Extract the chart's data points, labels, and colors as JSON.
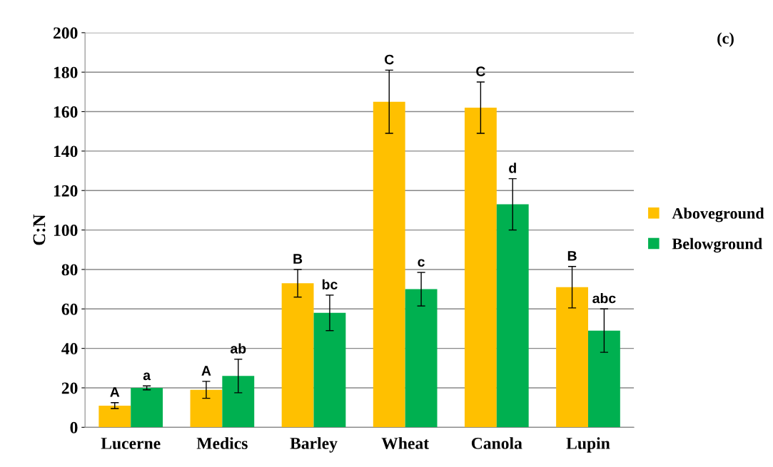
{
  "chart_data": {
    "type": "bar",
    "ylabel": "C:N",
    "categories": [
      "Lucerne",
      "Medics",
      "Barley",
      "Wheat",
      "Canola",
      "Lupin"
    ],
    "series": [
      {
        "name": "Aboveground",
        "color": "#ffc000",
        "values": [
          11,
          19,
          73,
          165,
          162,
          71
        ],
        "errors": [
          1.5,
          4.3,
          7,
          16,
          13,
          10.5
        ],
        "value_labels": [
          "A",
          "A",
          "B",
          "C",
          "C",
          "B"
        ]
      },
      {
        "name": "Belowground",
        "color": "#00b050",
        "values": [
          20,
          26,
          58,
          70,
          113,
          49
        ],
        "errors": [
          1,
          8.5,
          9,
          8.5,
          13,
          11
        ],
        "value_labels": [
          "a",
          "ab",
          "bc",
          "c",
          "d",
          "abc"
        ]
      }
    ],
    "ylim": [
      0,
      200
    ],
    "yticks": [
      0,
      20,
      40,
      60,
      80,
      100,
      120,
      140,
      160,
      180,
      200
    ],
    "grid": "y",
    "legend": "right",
    "annotations": [
      "(c)"
    ]
  }
}
